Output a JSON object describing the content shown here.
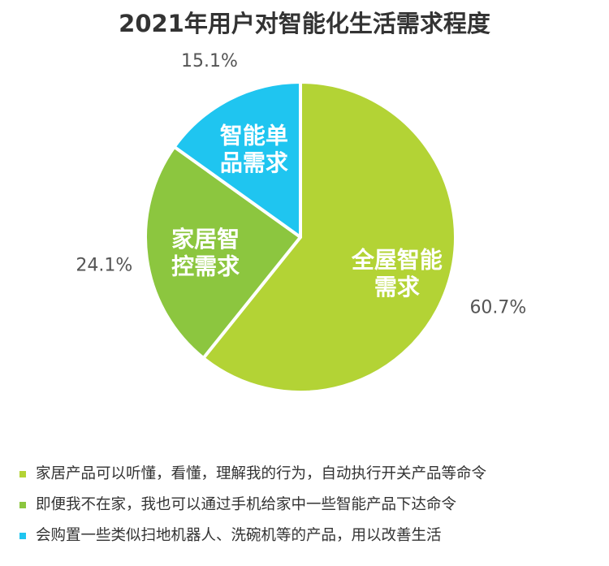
{
  "chart_data": {
    "type": "pie",
    "title": "2021年用户对智能化生活需求程度",
    "slices": [
      {
        "label_lines": [
          "全屋智能",
          "需求"
        ],
        "value": 60.7,
        "value_label": "60.7%",
        "color": "#b3d335"
      },
      {
        "label_lines": [
          "家居智",
          "控需求"
        ],
        "value": 24.1,
        "value_label": "24.1%",
        "color": "#8cc63f"
      },
      {
        "label_lines": [
          "智能单",
          "品需求"
        ],
        "value": 15.1,
        "value_label": "15.1%",
        "color": "#1fc5f0"
      }
    ],
    "legend": [
      {
        "text": "家居产品可以听懂，看懂，理解我的行为，自动执行开关产品等命令",
        "color": "#b3d335"
      },
      {
        "text": "即便我不在家，我也可以通过手机给家中一些智能产品下达命令",
        "color": "#8cc63f"
      },
      {
        "text": "会购置一些类似扫地机器人、洗碗机等的产品，用以改善生活",
        "color": "#1fc5f0"
      }
    ]
  }
}
